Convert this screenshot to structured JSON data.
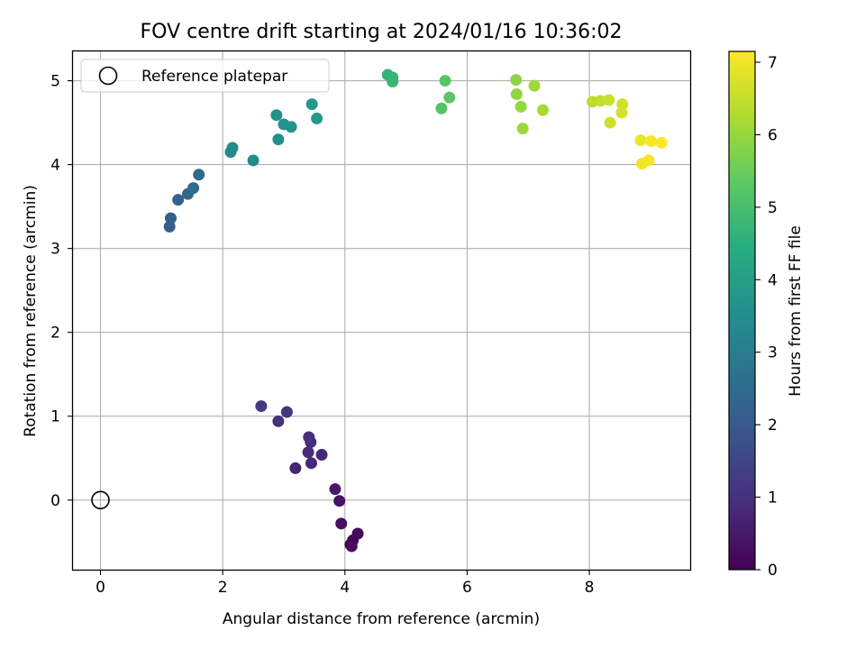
{
  "chart_data": {
    "type": "scatter",
    "title": "FOV centre drift starting at 2024/01/16 10:36:02",
    "xlabel": "Angular distance from reference (arcmin)",
    "ylabel": "Rotation from reference (arcmin)",
    "xlim": [
      -0.45,
      9.65
    ],
    "ylim": [
      -0.83,
      5.35
    ],
    "xticks": [
      0,
      2,
      4,
      6,
      8
    ],
    "yticks": [
      0,
      1,
      2,
      3,
      4,
      5
    ],
    "grid": true,
    "legend": {
      "placement": "top-left",
      "entries": [
        "Reference platepar"
      ]
    },
    "reference": {
      "name": "Reference platepar",
      "x": 0,
      "y": 0,
      "marker": "hollow-circle"
    },
    "colorbar": {
      "label": "Hours from first FF file",
      "colormap": "viridis",
      "range": [
        0,
        7.15
      ],
      "ticks": [
        0,
        1,
        2,
        3,
        4,
        5,
        6,
        7
      ]
    },
    "series": [
      {
        "x": [
          4.09,
          4.13,
          4.21,
          4.11,
          3.94,
          3.91,
          3.84,
          3.19,
          3.45,
          3.62,
          3.4,
          3.44,
          3.41,
          2.91,
          3.05,
          2.63,
          1.13,
          1.15,
          1.27,
          1.43,
          1.52,
          1.61,
          2.13,
          2.16,
          2.5,
          2.91,
          2.88,
          3.0,
          3.12,
          3.46,
          3.54,
          4.7,
          4.78,
          4.78,
          5.58,
          5.64,
          5.71,
          6.8,
          6.81,
          6.88,
          6.91,
          7.1,
          7.24,
          8.05,
          8.18,
          8.32,
          8.34,
          8.54,
          8.53,
          8.84,
          8.86,
          8.97,
          9.01,
          9.18
        ],
        "y": [
          -0.53,
          -0.48,
          -0.4,
          -0.55,
          -0.28,
          -0.01,
          0.13,
          0.38,
          0.44,
          0.54,
          0.57,
          0.69,
          0.75,
          0.94,
          1.05,
          1.12,
          3.26,
          3.36,
          3.58,
          3.65,
          3.72,
          3.88,
          4.15,
          4.2,
          4.05,
          4.3,
          4.59,
          4.48,
          4.45,
          4.72,
          4.55,
          5.07,
          5.04,
          4.99,
          4.67,
          5.0,
          4.8,
          5.01,
          4.84,
          4.69,
          4.43,
          4.94,
          4.65,
          4.75,
          4.76,
          4.77,
          4.5,
          4.72,
          4.62,
          4.29,
          4.01,
          4.05,
          4.28,
          4.26
        ],
        "hours": [
          0.05,
          0.1,
          0.15,
          0.2,
          0.3,
          0.4,
          0.5,
          0.7,
          0.75,
          0.8,
          0.85,
          0.9,
          0.95,
          1.05,
          1.1,
          1.15,
          2.1,
          2.15,
          2.25,
          2.35,
          2.45,
          2.5,
          3.35,
          3.4,
          3.45,
          3.55,
          3.6,
          3.65,
          3.7,
          3.8,
          3.85,
          4.65,
          4.7,
          4.75,
          5.2,
          5.25,
          5.3,
          5.9,
          5.95,
          6.0,
          6.05,
          6.1,
          6.15,
          6.4,
          6.5,
          6.55,
          6.6,
          6.65,
          6.7,
          6.95,
          7.0,
          7.05,
          7.1,
          7.15
        ]
      }
    ]
  }
}
